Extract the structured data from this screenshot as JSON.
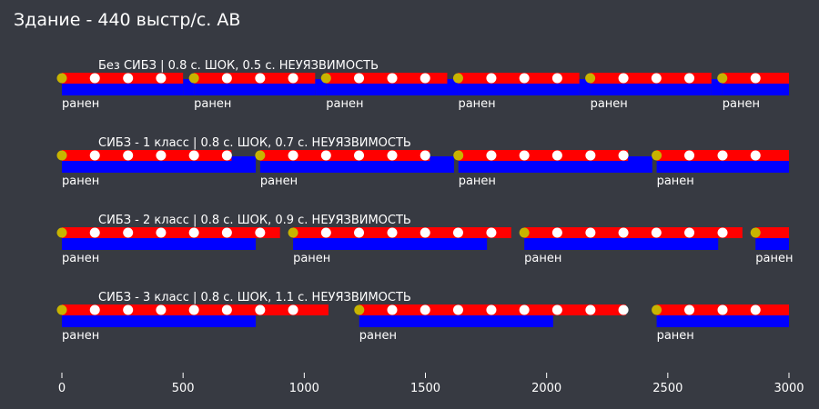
{
  "chart_data": {
    "type": "bar",
    "title": "Здание - 440 выстр/с. АВ",
    "xlabel": "",
    "ylabel": "",
    "xlim": [
      0,
      3000
    ],
    "x_ticks": [
      0,
      500,
      1000,
      1500,
      2000,
      2500,
      3000
    ],
    "grid": false,
    "colors": {
      "background": "#373a42",
      "fire_bar": "#ff0000",
      "damage_bar": "#0000ff",
      "wound_marker": "#c8b400",
      "shot_marker": "#ffffff",
      "text": "#ffffff"
    },
    "series": [
      {
        "name": "Без СИБЗ | 0.8 с. ШОК, 0.5 с. НЕУЯЗВИМОСТЬ",
        "fire_intervals": [
          [
            0,
            500
          ],
          [
            545,
            1045
          ],
          [
            1090,
            1590
          ],
          [
            1635,
            2135
          ],
          [
            2180,
            2680
          ],
          [
            2725,
            3000
          ]
        ],
        "damage_intervals": [
          [
            0,
            500
          ],
          [
            500,
            545
          ],
          [
            545,
            1045
          ],
          [
            1045,
            1090
          ],
          [
            1090,
            1590
          ],
          [
            1590,
            1635
          ],
          [
            1635,
            2135
          ],
          [
            2135,
            2180
          ],
          [
            2180,
            2680
          ],
          [
            2680,
            2725
          ],
          [
            2725,
            3000
          ]
        ],
        "wound_times": [
          0,
          545,
          1090,
          1635,
          2180,
          2725
        ],
        "wound_label": "ранен",
        "shot_times": [
          136,
          273,
          409,
          681,
          818,
          954,
          1226,
          1363,
          1499,
          1772,
          1908,
          2044,
          2317,
          2453,
          2589,
          2862
        ]
      },
      {
        "name": "СИБЗ - 1 класс | 0.8 с. ШОК, 0.7 с. НЕУЯЗВИМОСТЬ",
        "fire_intervals": [
          [
            0,
            700
          ],
          [
            818,
            1518
          ],
          [
            1636,
            2336
          ],
          [
            2454,
            3000
          ]
        ],
        "damage_intervals": [
          [
            0,
            800
          ],
          [
            818,
            1618
          ],
          [
            1636,
            2436
          ],
          [
            2454,
            3000
          ]
        ],
        "wound_times": [
          0,
          818,
          1636,
          2454
        ],
        "wound_label": "ранен",
        "shot_times": [
          136,
          273,
          409,
          545,
          681,
          954,
          1090,
          1226,
          1363,
          1499,
          1772,
          1908,
          2044,
          2181,
          2317,
          2589,
          2726,
          2862
        ]
      },
      {
        "name": "СИБЗ - 2 класс | 0.8 с. ШОК, 0.9 с. НЕУЯЗВИМОСТЬ",
        "fire_intervals": [
          [
            0,
            900
          ],
          [
            954,
            1854
          ],
          [
            1908,
            2808
          ],
          [
            2862,
            3000
          ]
        ],
        "damage_intervals": [
          [
            0,
            800
          ],
          [
            954,
            1754
          ],
          [
            1908,
            2708
          ],
          [
            2862,
            3000
          ]
        ],
        "wound_times": [
          0,
          954,
          1908,
          2862
        ],
        "wound_label": "ранен",
        "shot_times": [
          136,
          273,
          409,
          545,
          681,
          818,
          1090,
          1226,
          1363,
          1499,
          1635,
          1772,
          2044,
          2181,
          2317,
          2453,
          2589,
          2726
        ]
      },
      {
        "name": "СИБЗ - 3 класс | 0.8 с. ШОК, 1.1 с. НЕУЯЗВИМОСТЬ",
        "fire_intervals": [
          [
            0,
            1100
          ],
          [
            1227,
            2327
          ],
          [
            2454,
            3000
          ]
        ],
        "damage_intervals": [
          [
            0,
            800
          ],
          [
            1227,
            2027
          ],
          [
            2454,
            3000
          ]
        ],
        "wound_times": [
          0,
          1227,
          2454
        ],
        "wound_label": "ранен",
        "shot_times": [
          136,
          273,
          409,
          545,
          681,
          818,
          954,
          1363,
          1499,
          1635,
          1772,
          1908,
          2044,
          2181,
          2317,
          2589,
          2726,
          2862
        ]
      }
    ]
  }
}
